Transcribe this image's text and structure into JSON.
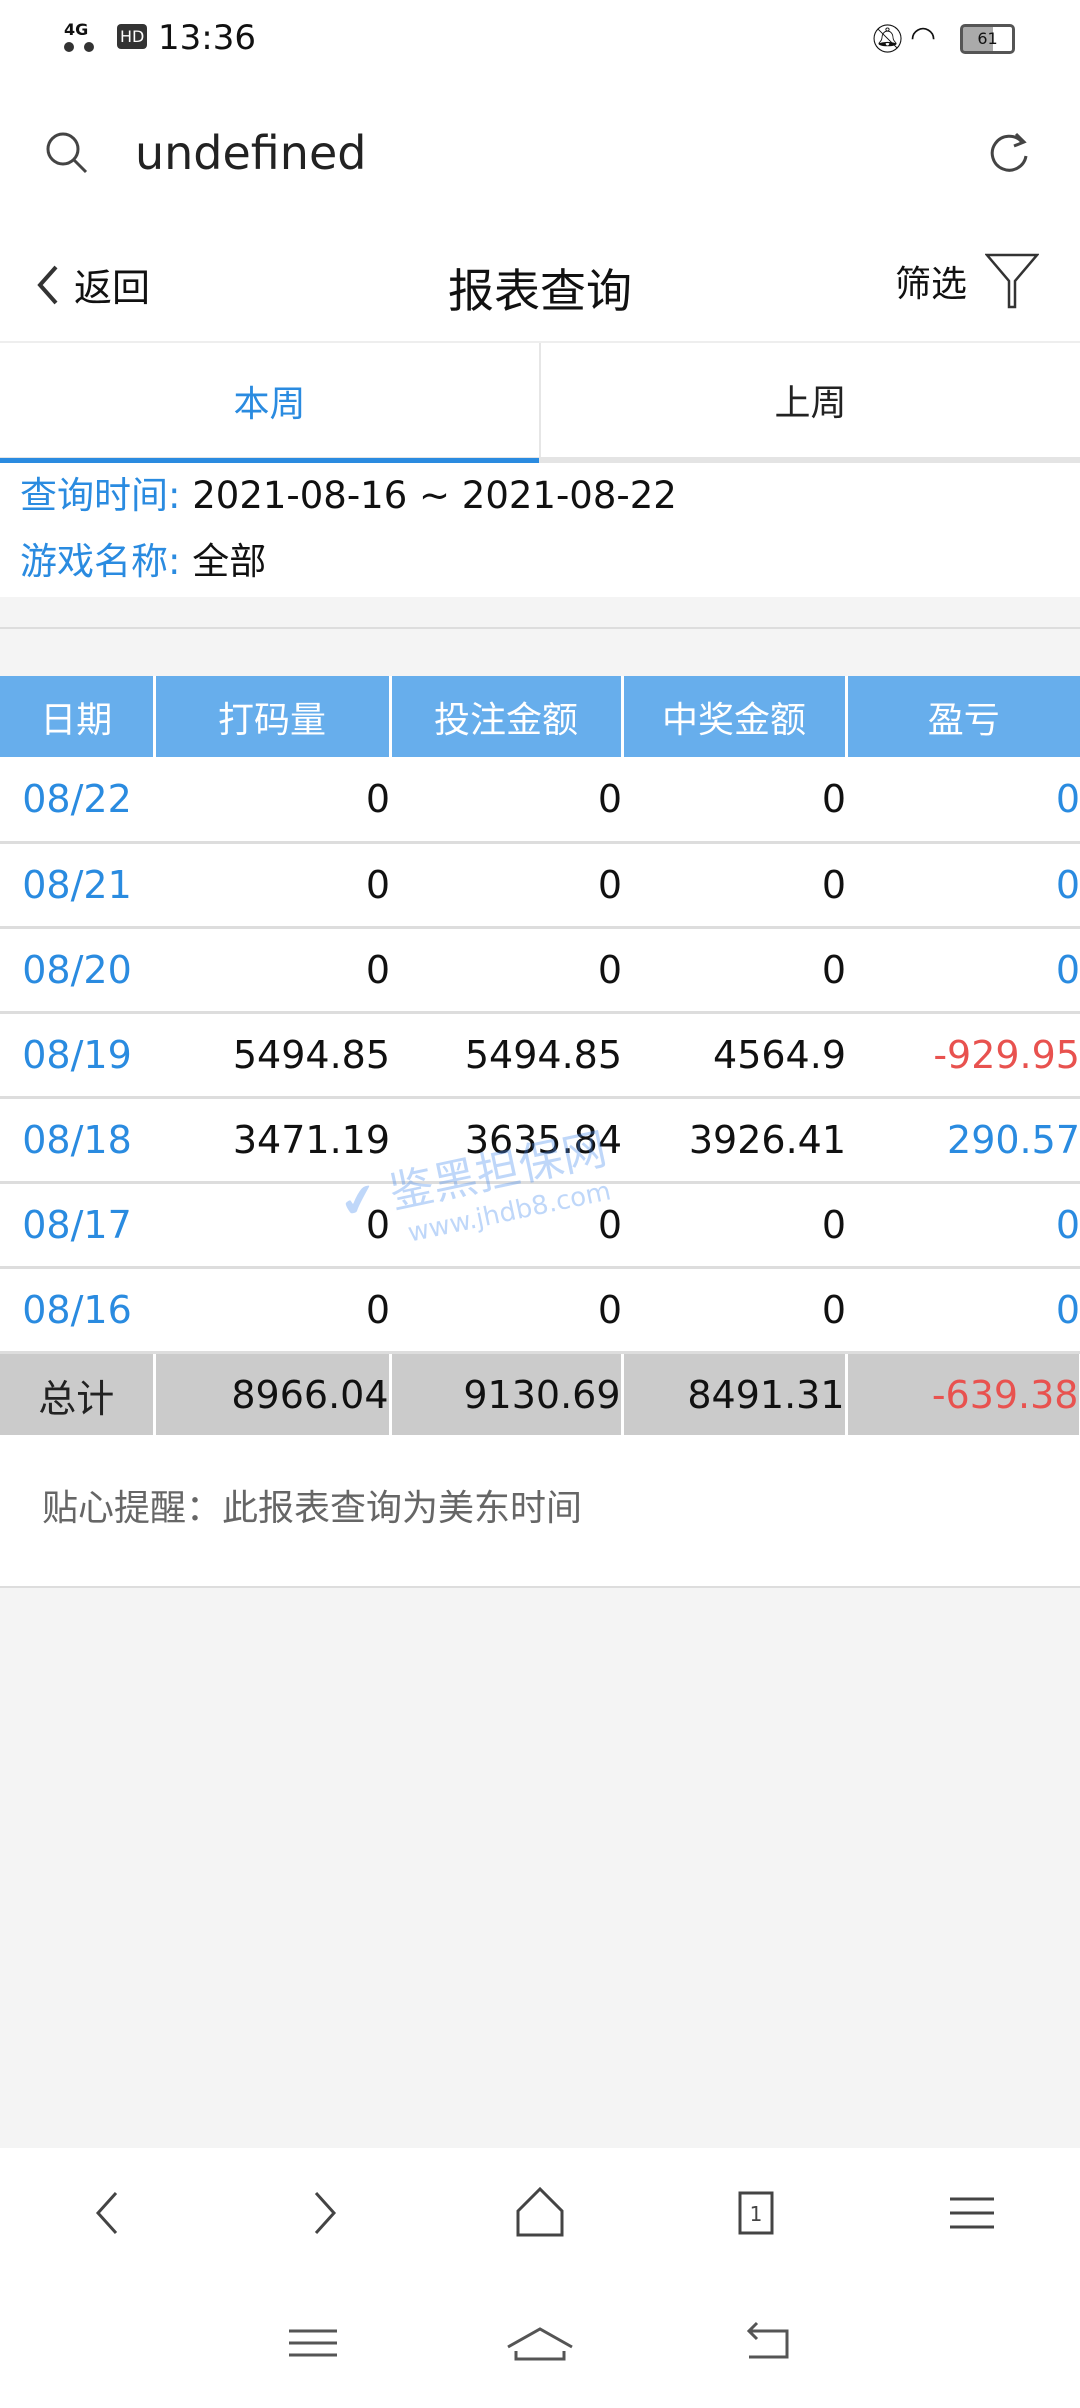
{
  "status": {
    "network": "4G",
    "hd": "HD",
    "time": "13:36",
    "battery": "61"
  },
  "address": {
    "value": "undefined"
  },
  "header": {
    "back": "返回",
    "title": "报表查询",
    "filter": "筛选"
  },
  "tabs": [
    {
      "label": "本周",
      "active": true
    },
    {
      "label": "上周",
      "active": false
    }
  ],
  "info": {
    "time_label": "查询时间:",
    "time_value": "2021-08-16 ~ 2021-08-22",
    "game_label": "游戏名称:",
    "game_value": "全部"
  },
  "table": {
    "headers": [
      "日期",
      "打码量",
      "投注金额",
      "中奖金额",
      "盈亏"
    ],
    "rows": [
      [
        "08/22",
        "0",
        "0",
        "0",
        "0"
      ],
      [
        "08/21",
        "0",
        "0",
        "0",
        "0"
      ],
      [
        "08/20",
        "0",
        "0",
        "0",
        "0"
      ],
      [
        "08/19",
        "5494.85",
        "5494.85",
        "4564.9",
        "-929.95"
      ],
      [
        "08/18",
        "3471.19",
        "3635.84",
        "3926.41",
        "290.57"
      ],
      [
        "08/17",
        "0",
        "0",
        "0",
        "0"
      ],
      [
        "08/16",
        "0",
        "0",
        "0",
        "0"
      ]
    ],
    "total": [
      "总计",
      "8966.04",
      "9130.69",
      "8491.31",
      "-639.38"
    ]
  },
  "reminder": "贴心提醒：此报表查询为美东时间",
  "watermark": {
    "text": "鉴黑担保网",
    "url": "www.jhdb8.com"
  },
  "colors": {
    "accent": "#2a8be0",
    "header": "#67aeec",
    "negative": "#e8524f"
  }
}
